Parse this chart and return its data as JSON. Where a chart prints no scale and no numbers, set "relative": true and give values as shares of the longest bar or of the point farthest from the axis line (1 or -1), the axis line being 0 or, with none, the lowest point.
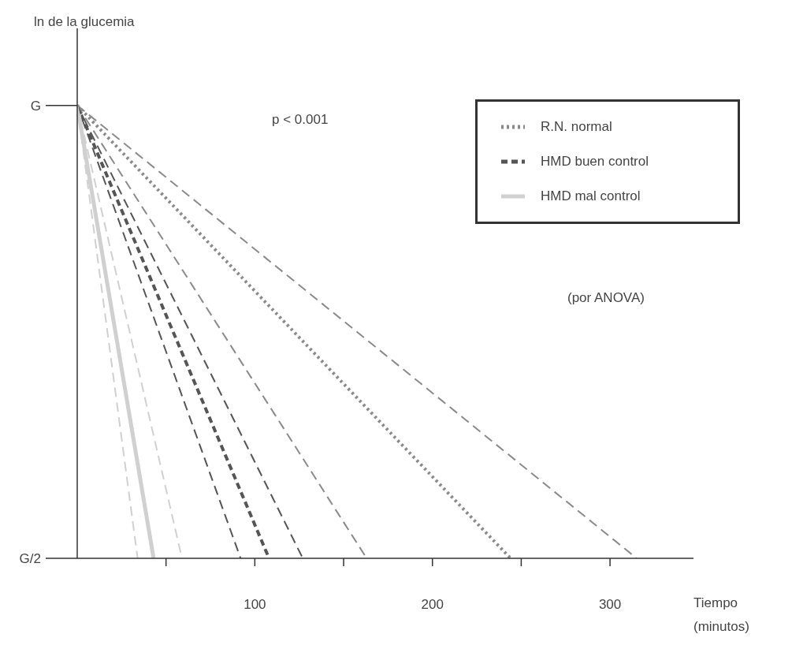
{
  "chart_data": {
    "type": "line",
    "relative": true,
    "xlabel": "Tiempo (minutos)",
    "annotations": [
      "G",
      "G/2",
      "p < 0.001",
      "(por ANOVA)",
      "ln de la glucemia"
    ],
    "xlim": [
      0,
      347
    ],
    "xticks": [
      {
        "value": 50,
        "label": null
      },
      100,
      {
        "value": 150,
        "label": null
      },
      200,
      {
        "value": 250,
        "label": null
      },
      300
    ],
    "grid": false,
    "legend": "top right",
    "marker": "none",
    "series": [
      {
        "name": "R.N. normal",
        "color": "#8a8a8a",
        "line_style": "dotted",
        "x": [
          0,
          244
        ],
        "values": [
          1,
          0
        ]
      },
      {
        "name": "HMD buen control",
        "color": "#555555",
        "line_style": "dashed",
        "x": [
          0,
          108
        ],
        "values": [
          1,
          0
        ]
      },
      {
        "name": "HMD mal control",
        "color": "#d0d0d0",
        "line_style": "solid",
        "x": [
          0,
          43
        ],
        "values": [
          1,
          0
        ]
      },
      {
        "color": "#8a8a8a",
        "line_style": "dashed",
        "x": [
          0,
          163
        ],
        "values": [
          1,
          0
        ]
      },
      {
        "color": "#8a8a8a",
        "line_style": "dashed",
        "x": [
          0,
          315
        ],
        "values": [
          1,
          0
        ]
      },
      {
        "color": "#555555",
        "line_style": "dashed",
        "x": [
          0,
          92
        ],
        "values": [
          1,
          0
        ]
      },
      {
        "color": "#555555",
        "line_style": "dashed",
        "x": [
          0,
          127
        ],
        "values": [
          1,
          0
        ]
      },
      {
        "color": "#d0d0d0",
        "line_style": "dashed",
        "x": [
          0,
          34
        ],
        "values": [
          1,
          0
        ]
      },
      {
        "color": "#d0d0d0",
        "line_style": "dashed",
        "x": [
          0,
          59
        ],
        "values": [
          1,
          0
        ]
      }
    ]
  }
}
